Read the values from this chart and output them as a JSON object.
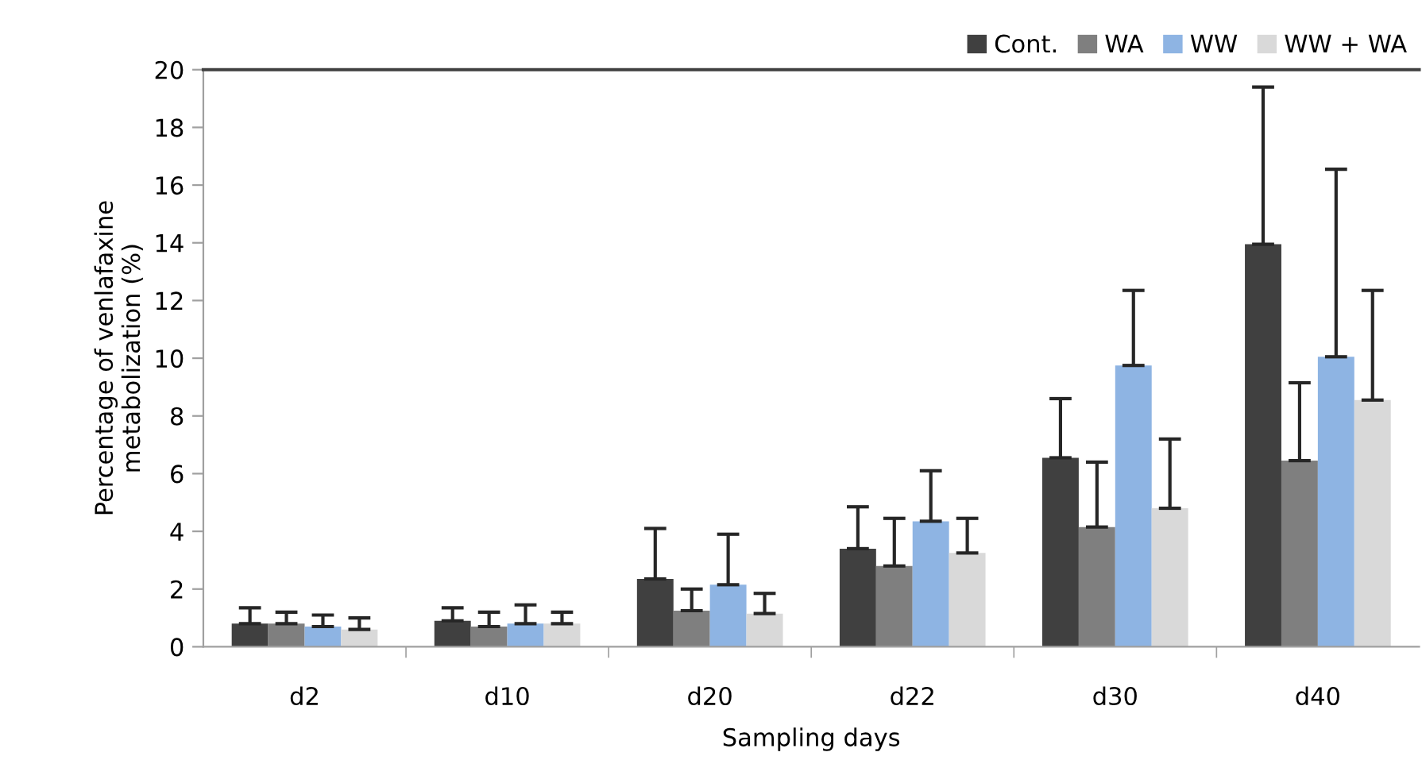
{
  "chart_data": {
    "type": "bar",
    "xlabel": "Sampling days",
    "ylabel": "Percentage of venlafaxine\nmetabolization (%)",
    "categories": [
      "d2",
      "d10",
      "d20",
      "d22",
      "d30",
      "d40"
    ],
    "ylim": [
      0,
      20
    ],
    "yticks": [
      0,
      2,
      4,
      6,
      8,
      10,
      12,
      14,
      16,
      18,
      20
    ],
    "grid": false,
    "legend": "top right",
    "series": [
      {
        "name": "Cont.",
        "color": "#404040",
        "values": [
          0.8,
          0.9,
          2.35,
          3.4,
          6.55,
          13.95
        ],
        "errors": [
          [
            0.8,
            1.35
          ],
          [
            0.9,
            1.35
          ],
          [
            2.35,
            4.1
          ],
          [
            3.4,
            4.85
          ],
          [
            6.55,
            8.6
          ],
          [
            13.95,
            19.4
          ]
        ]
      },
      {
        "name": "WA",
        "color": "#7f7f7f",
        "values": [
          0.8,
          0.7,
          1.25,
          2.8,
          4.15,
          6.45
        ],
        "errors": [
          [
            0.8,
            1.2
          ],
          [
            0.7,
            1.2
          ],
          [
            1.25,
            2.0
          ],
          [
            2.8,
            4.45
          ],
          [
            4.15,
            6.4
          ],
          [
            6.45,
            9.15
          ]
        ]
      },
      {
        "name": "WW",
        "color": "#8eb4e3",
        "values": [
          0.7,
          0.8,
          2.15,
          4.35,
          9.75,
          10.05
        ],
        "errors": [
          [
            0.7,
            1.1
          ],
          [
            0.8,
            1.45
          ],
          [
            2.15,
            3.9
          ],
          [
            4.35,
            6.1
          ],
          [
            9.75,
            12.35
          ],
          [
            10.05,
            16.55
          ]
        ]
      },
      {
        "name": "WW + WA",
        "color": "#d9d9d9",
        "values": [
          0.6,
          0.8,
          1.15,
          3.25,
          4.8,
          8.55
        ],
        "errors": [
          [
            0.6,
            1.0
          ],
          [
            0.8,
            1.2
          ],
          [
            1.15,
            1.85
          ],
          [
            3.25,
            4.45
          ],
          [
            4.8,
            7.2
          ],
          [
            8.55,
            12.35
          ]
        ]
      }
    ]
  }
}
